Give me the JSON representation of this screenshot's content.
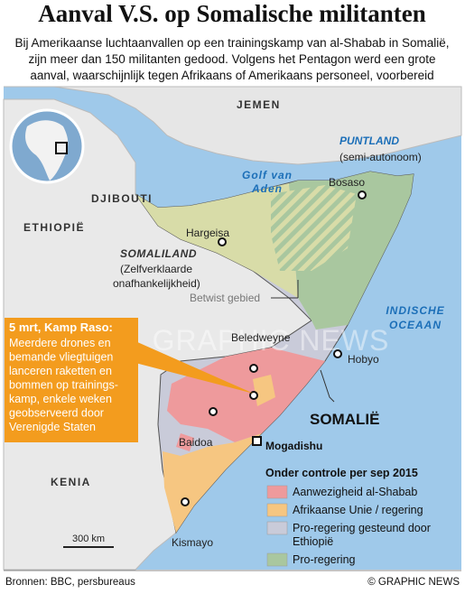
{
  "header": {
    "title": "Aanval V.S. op Somalische militanten",
    "subtitle_lines": [
      "Bij Amerikaanse luchtaanvallen op een trainingskamp van al-Shabab in Somalië,",
      "zijn meer dan 150 militanten gedood. Volgens het Pentagon werd een grote",
      "aanval, waarschijnlijk tegen Afrikaans of Amerikaans personeel, voorbereid"
    ]
  },
  "map_labels": {
    "jemen": "JEMEN",
    "golf": [
      "Golf van",
      "Aden"
    ],
    "puntland": "PUNTLAND",
    "puntland_note": "(semi-autonoom)",
    "bosaso": "Bosaso",
    "djibouti": "DJIBOUTI",
    "ethiopie": "ETHIOPIË",
    "hargeisa": "Hargeisa",
    "somaliland": "SOMALILAND",
    "somaliland_note": [
      "(Zelfverklaarde",
      "onafhankelijkheid)"
    ],
    "betwist": "Betwist gebied",
    "oceaan": [
      "INDISCHE",
      "OCEAAN"
    ],
    "beledweyne": "Beledweyne",
    "hobyo": "Hobyo",
    "somalie": "SOMALIË",
    "baidoa": "Baidoa",
    "mogadishu": "Mogadishu",
    "kenia": "KENIA",
    "kismayo": "Kismayo",
    "scale": "300 km",
    "watermark": "GRAPHIC NEWS"
  },
  "callout": {
    "heading": "5 mrt, Kamp Raso:",
    "lines": [
      "Meerdere drones en",
      "bemande vliegtuigen",
      "lanceren raketten en",
      "bommen op trainings-",
      "kamp, enkele weken",
      "geobserveerd door",
      "Verenigde Staten"
    ]
  },
  "legend": {
    "title": "Onder controle per sep 2015",
    "items": [
      {
        "label_lines": [
          "Aanwezigheid al-Shabab"
        ],
        "color": "#ee9a9c"
      },
      {
        "label_lines": [
          "Afrikaanse Unie / regering"
        ],
        "color": "#f6c681"
      },
      {
        "label_lines": [
          "Pro-regering gesteund door",
          "Ethiopië"
        ],
        "color": "#c9cbd9"
      },
      {
        "label_lines": [
          "Pro-regering"
        ],
        "color": "#a9c79f"
      }
    ]
  },
  "footer": {
    "source": "Bronnen: BBC, persbureaus",
    "credit": "© GRAPHIC NEWS"
  }
}
